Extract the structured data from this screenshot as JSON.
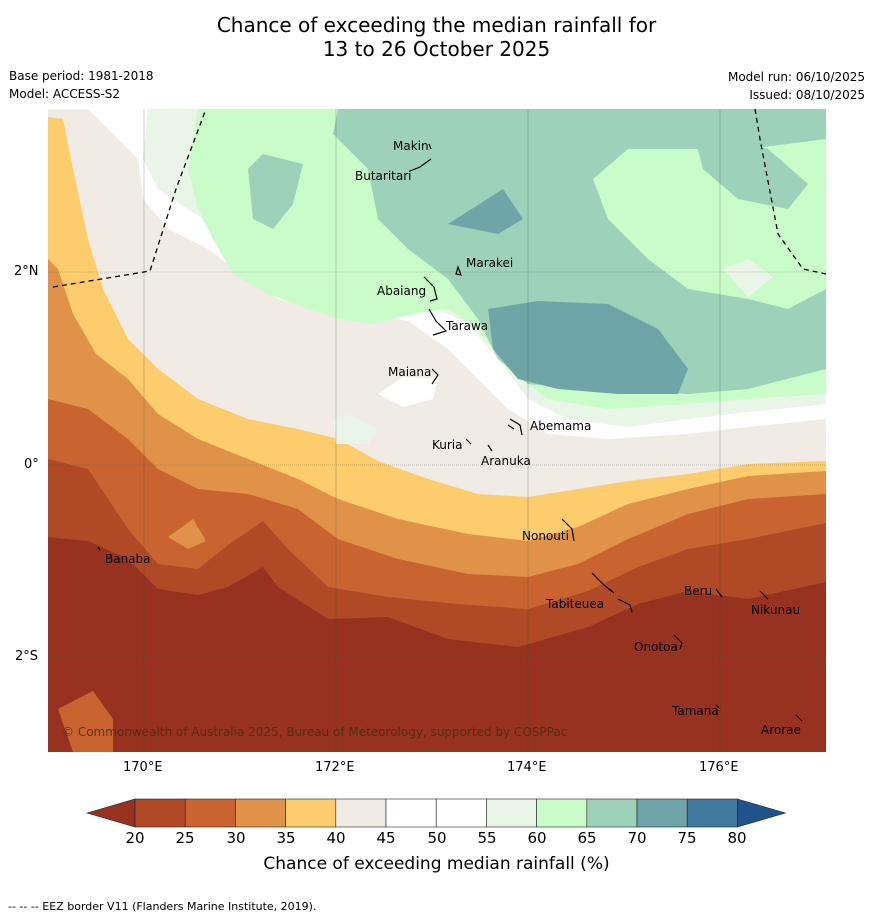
{
  "title_line1": "Chance of exceeding the median rainfall for",
  "title_line2": "13 to 26 October 2025",
  "base_period": "Base period: 1981-2018",
  "model": "Model: ACCESS-S2",
  "model_run": "Model run: 06/10/2025",
  "issued": "Issued: 08/10/2025",
  "copyright": "© Commonwealth of Australia 2025, Bureau of Meteorology, supported by COSPPac",
  "lat_labels": [
    "2°N",
    "0°",
    "2°S"
  ],
  "lon_labels": [
    "170°E",
    "172°E",
    "174°E",
    "176°E"
  ],
  "places": [
    "Makin",
    "Butaritari",
    "Marakei",
    "Abaiang",
    "Tarawa",
    "Maiana",
    "Abemama",
    "Kuria",
    "Aranuka",
    "Nonouti",
    "Banaba",
    "Tabiteuea",
    "Beru",
    "Nikunau",
    "Onotoa",
    "Tamana",
    "Arorae"
  ],
  "colorbar": {
    "ticks": [
      "20",
      "25",
      "30",
      "35",
      "40",
      "45",
      "50",
      "55",
      "60",
      "65",
      "70",
      "75",
      "80"
    ],
    "colors": [
      "#973220",
      "#b04a26",
      "#c96431",
      "#e09248",
      "#fdcc6c",
      "#f0ebe5",
      "#ffffff",
      "#ffffff",
      "#e9f5e7",
      "#c9fcc9",
      "#9dd1ba",
      "#6fa5a8",
      "#417a9e",
      "#20528c"
    ],
    "title": "Chance of exceeding median rainfall (%)"
  },
  "footnote": "-- -- -- EEZ border V11 (Flanders Marine Institute, 2019)."
}
